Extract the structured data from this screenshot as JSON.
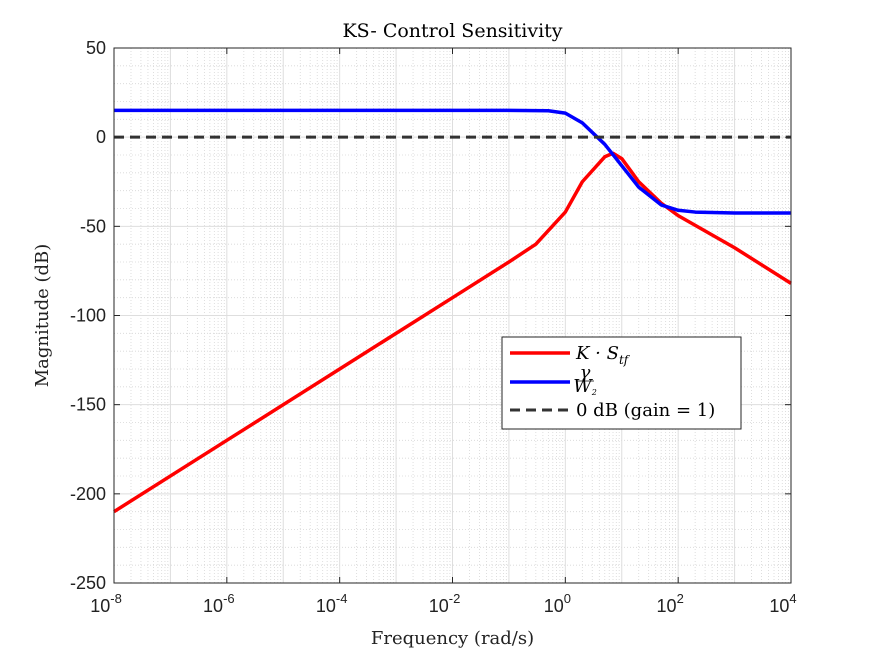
{
  "chart_data": {
    "type": "line",
    "title": "KS- Control Sensitivity",
    "xlabel": "Frequency (rad/s)",
    "ylabel": "Magnitude (dB)",
    "xscale": "log",
    "xlim": [
      1e-08,
      10000.0
    ],
    "ylim": [
      -250,
      50
    ],
    "x_ticks": [
      {
        "base": "10",
        "exp": "-8",
        "value": 1e-08
      },
      {
        "base": "10",
        "exp": "-6",
        "value": 1e-06
      },
      {
        "base": "10",
        "exp": "-4",
        "value": 0.0001
      },
      {
        "base": "10",
        "exp": "-2",
        "value": 0.01
      },
      {
        "base": "10",
        "exp": "0",
        "value": 1
      },
      {
        "base": "10",
        "exp": "2",
        "value": 100
      },
      {
        "base": "10",
        "exp": "4",
        "value": 10000
      }
    ],
    "y_ticks": [
      50,
      0,
      -50,
      -100,
      -150,
      -200,
      -250
    ],
    "y_tick_labels": [
      "50",
      "0",
      "-50",
      "-100",
      "-150",
      "-200",
      "-250"
    ],
    "grid": true,
    "minor_grid": true,
    "legend_position": "center-right",
    "series": [
      {
        "name": "K · S_tf",
        "legend_main": "K · S",
        "legend_sub": "tf",
        "color": "#ff0000",
        "style": "solid",
        "x": [
          1e-08,
          1e-06,
          0.0001,
          0.01,
          0.1,
          0.3,
          1,
          2,
          5,
          7,
          10,
          20,
          50,
          100,
          1000,
          10000
        ],
        "y": [
          -210,
          -170,
          -130,
          -90,
          -70,
          -60,
          -42,
          -25,
          -11,
          -9,
          -12,
          -25,
          -37,
          -44,
          -62,
          -82
        ]
      },
      {
        "name": "γ / W2",
        "legend_num": "γ",
        "legend_den": "W",
        "legend_den_sub": "2",
        "color": "#0000ff",
        "style": "solid",
        "x": [
          1e-08,
          0.01,
          0.1,
          0.5,
          1,
          2,
          5,
          10,
          20,
          50,
          100,
          200,
          1000,
          10000
        ],
        "y": [
          15,
          15,
          15,
          14.8,
          13.5,
          8,
          -4,
          -16,
          -28,
          -38,
          -41,
          -42,
          -42.5,
          -42.5
        ]
      },
      {
        "name": "0 dB (gain = 1)",
        "color": "#333333",
        "style": "dashed",
        "x": [
          1e-08,
          10000
        ],
        "y": [
          0,
          0
        ]
      }
    ]
  }
}
